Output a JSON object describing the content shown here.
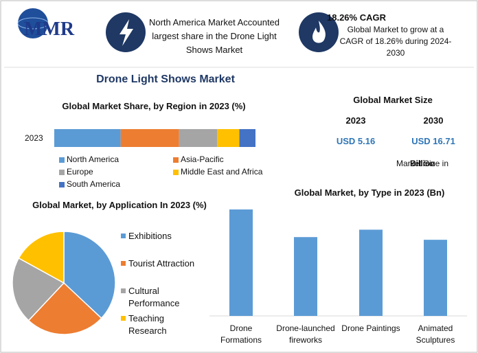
{
  "header": {
    "logo": "MMR",
    "highlight_1": "North America Market Accounted largest share in the Drone Light Shows Market",
    "highlight_2_title": "18.26% CAGR",
    "highlight_2": "Global Market to grow at a CAGR of 18.26% during 2024-2030"
  },
  "title": "Drone Light Shows Market",
  "market_size": {
    "title": "Global Market Size",
    "years": [
      "2023",
      "2030"
    ],
    "values": [
      "USD 5.16",
      "USD 16.71"
    ],
    "unit_note": "Market Size in",
    "unit": "Billion"
  },
  "chart_data": [
    {
      "type": "stacked_bar",
      "title": "Global Market Share, by Region in 2023 (%)",
      "categories": [
        "2023"
      ],
      "series": [
        {
          "name": "North America",
          "color": "#5b9bd5",
          "values": [
            33
          ]
        },
        {
          "name": "Asia-Pacific",
          "color": "#ed7d31",
          "values": [
            29
          ]
        },
        {
          "name": "Europe",
          "color": "#a5a5a5",
          "values": [
            19
          ]
        },
        {
          "name": "Middle East and Africa",
          "color": "#ffc000",
          "values": [
            11
          ]
        },
        {
          "name": "South America",
          "color": "#4472c4",
          "values": [
            8
          ]
        }
      ]
    },
    {
      "type": "pie",
      "title": "Global Market, by Application In 2023 (%)",
      "categories": [
        "Exhibitions",
        "Tourist Attraction",
        "Cultural Performance",
        "Teaching Research"
      ],
      "values": [
        37,
        25,
        21,
        17
      ],
      "colors": [
        "#5b9bd5",
        "#ed7d31",
        "#a5a5a5",
        "#ffc000"
      ]
    },
    {
      "type": "bar",
      "title": "Global Market, by Type in 2023 (Bn)",
      "categories": [
        "Drone Formations",
        "Drone-launched fireworks",
        "Drone Paintings",
        "Animated Sculptures"
      ],
      "values": [
        1.58,
        1.17,
        1.28,
        1.13
      ],
      "color": "#5b9bd5"
    }
  ]
}
